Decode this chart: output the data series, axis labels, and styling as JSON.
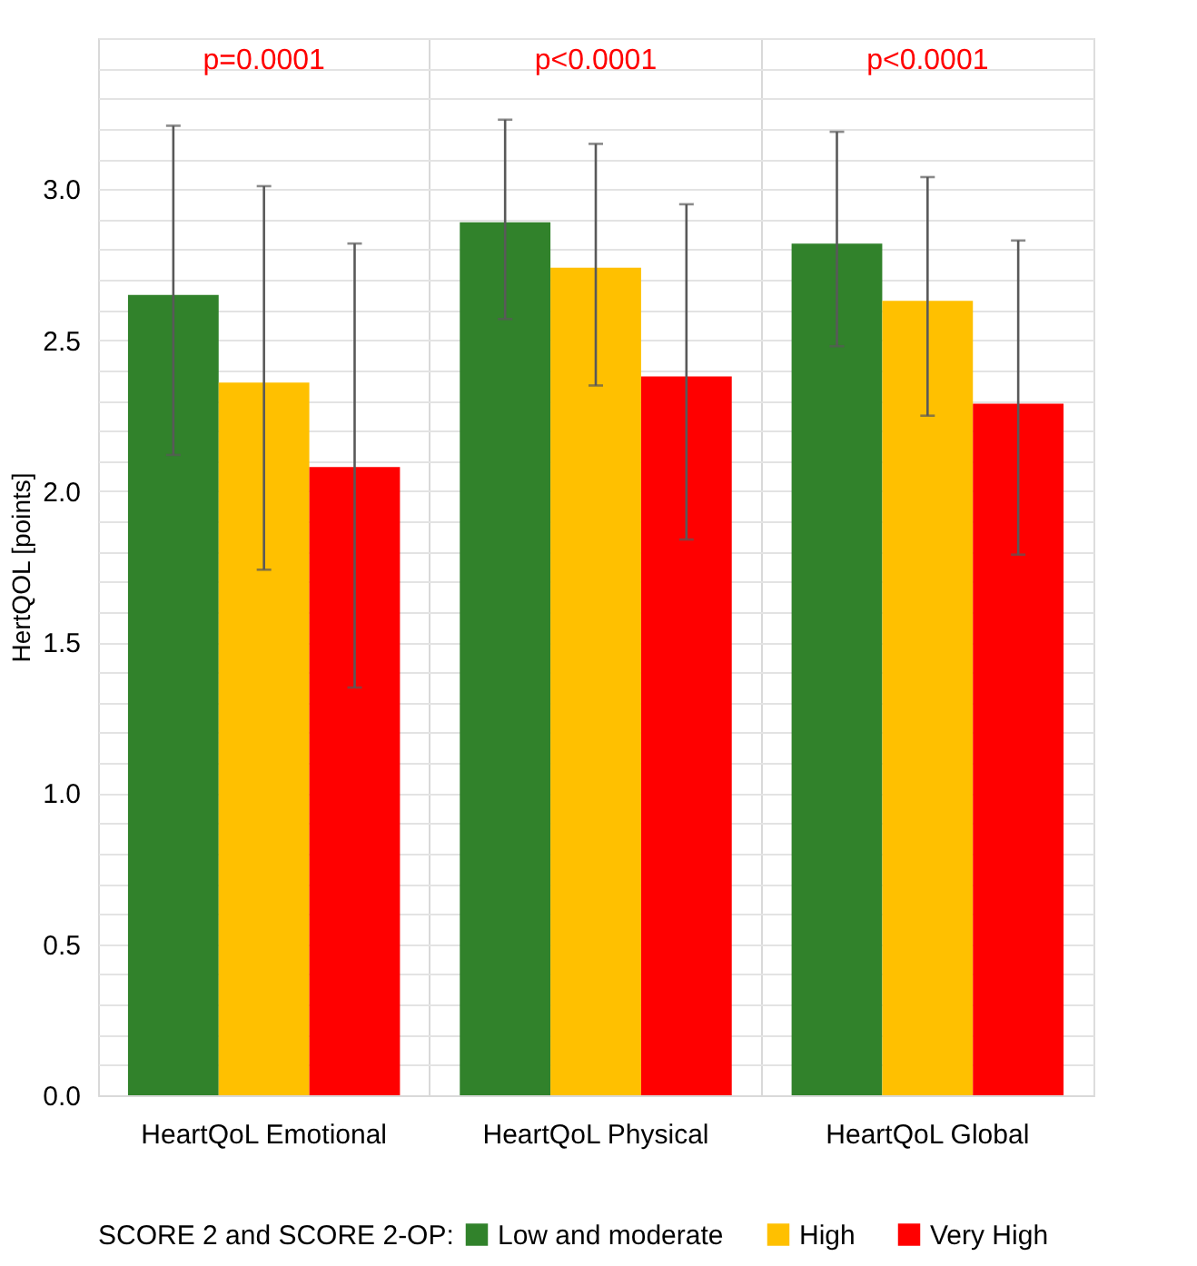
{
  "chart_data": {
    "type": "bar",
    "ylabel": "HertQOL [points]",
    "legend_title": "SCORE 2 and SCORE 2-OP:",
    "categories": [
      "HeartQoL Emotional",
      "HeartQoL Physical",
      "HeartQoL Global"
    ],
    "series": [
      {
        "name": "Low and moderate",
        "color": "#31822b",
        "values": [
          2.65,
          2.89,
          2.82
        ],
        "errors": [
          [
            2.12,
            3.21
          ],
          [
            2.57,
            3.23
          ],
          [
            2.48,
            3.19
          ]
        ]
      },
      {
        "name": "High",
        "color": "#ffc000",
        "values": [
          2.36,
          2.74,
          2.63
        ],
        "errors": [
          [
            1.74,
            3.01
          ],
          [
            2.35,
            3.15
          ],
          [
            2.25,
            3.04
          ]
        ]
      },
      {
        "name": "Very High",
        "color": "#ff0000",
        "values": [
          2.08,
          2.38,
          2.29
        ],
        "errors": [
          [
            1.35,
            2.82
          ],
          [
            1.84,
            2.95
          ],
          [
            1.79,
            2.83
          ]
        ]
      }
    ],
    "ylim": [
      0,
      3.5
    ],
    "yticks": [
      {
        "value": 0,
        "label": "0.0"
      },
      {
        "value": 0.1,
        "label": null
      },
      {
        "value": 0.2,
        "label": null
      },
      {
        "value": 0.3,
        "label": null
      },
      {
        "value": 0.4,
        "label": null
      },
      0.5,
      {
        "value": 0.6,
        "label": null
      },
      {
        "value": 0.7,
        "label": null
      },
      {
        "value": 0.8,
        "label": null
      },
      {
        "value": 0.9,
        "label": null
      },
      {
        "value": 1.0,
        "label": "1.0"
      },
      {
        "value": 1.1,
        "label": null
      },
      {
        "value": 1.2,
        "label": null
      },
      {
        "value": 1.3,
        "label": null
      },
      {
        "value": 1.4,
        "label": null
      },
      1.5,
      {
        "value": 1.6,
        "label": null
      },
      {
        "value": 1.7,
        "label": null
      },
      {
        "value": 1.8,
        "label": null
      },
      {
        "value": 1.9,
        "label": null
      },
      {
        "value": 2.0,
        "label": "2.0"
      },
      {
        "value": 2.1,
        "label": null
      },
      {
        "value": 2.2,
        "label": null
      },
      {
        "value": 2.3,
        "label": null
      },
      {
        "value": 2.4,
        "label": null
      },
      2.5,
      {
        "value": 2.6,
        "label": null
      },
      {
        "value": 2.7,
        "label": null
      },
      {
        "value": 2.8,
        "label": null
      },
      {
        "value": 2.9,
        "label": null
      },
      {
        "value": 3.0,
        "label": "3.0"
      },
      {
        "value": 3.1,
        "label": null
      },
      {
        "value": 3.2,
        "label": null
      },
      {
        "value": 3.3,
        "label": null
      },
      {
        "value": 3.4,
        "label": null
      },
      {
        "value": 3.5,
        "label": null
      }
    ],
    "grid": true,
    "legend": "bottom",
    "annotations": [
      "p=0.0001",
      "p<0.0001",
      "p<0.0001"
    ]
  }
}
